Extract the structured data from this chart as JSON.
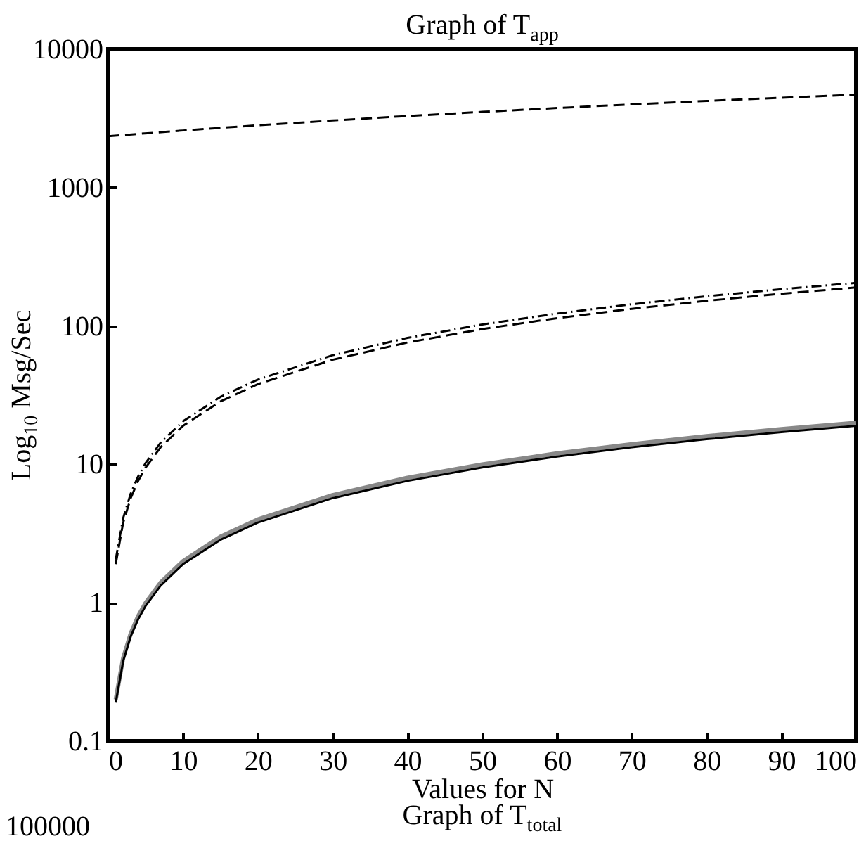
{
  "chart_data": {
    "type": "line",
    "title": "Graph of T$_{app}$",
    "xlabel": "Values for N",
    "ylabel": "Log$_{10}$ Msg/Sec",
    "x": [
      1,
      2,
      3,
      4,
      5,
      7,
      10,
      15,
      20,
      30,
      40,
      50,
      60,
      70,
      80,
      90,
      100
    ],
    "series": [
      {
        "color": "#888888",
        "line_style": "solid",
        "values": [
          0.2,
          0.4,
          0.6,
          0.8,
          1,
          1.4,
          2,
          3,
          4,
          6,
          8,
          10,
          12,
          14,
          16,
          18,
          20
        ]
      },
      {
        "color": "#000000",
        "line_style": "solid",
        "values": [
          0.19,
          0.38,
          0.57,
          0.76,
          0.95,
          1.33,
          1.9,
          2.85,
          3.8,
          5.7,
          7.6,
          9.5,
          11.4,
          13.3,
          15.2,
          17.1,
          19
        ]
      },
      {
        "color": "#000000",
        "line_style": "dashed",
        "values": [
          1.9,
          3.8,
          5.7,
          7.6,
          9.5,
          13.3,
          19,
          28.5,
          38,
          57,
          76,
          95,
          114,
          133,
          152,
          171,
          190
        ]
      },
      {
        "color": "#000000",
        "line_style": "dotted",
        "values": [
          2.05,
          4.1,
          6.15,
          8.2,
          10.25,
          14.35,
          20.5,
          30.75,
          41,
          61.5,
          82,
          102.5,
          123,
          143.5,
          164,
          184.5,
          205
        ]
      },
      {
        "color": "#000000",
        "line_style": "dashed",
        "x": [
          0,
          10,
          20,
          30,
          40,
          50,
          60,
          70,
          80,
          90,
          100
        ],
        "values": [
          2350,
          2585,
          2820,
          3055,
          3290,
          3525,
          3760,
          3995,
          4230,
          4465,
          4700
        ]
      }
    ],
    "log": "y",
    "grid": false,
    "xlim": [
      0,
      100
    ],
    "xticks": [
      0,
      10,
      20,
      30,
      40,
      50,
      60,
      70,
      80,
      90,
      100
    ],
    "ylim": [
      0.1,
      10000
    ],
    "yticks": [
      0.1,
      1,
      10,
      100,
      1000,
      10000
    ],
    "annotations": [
      "Graph of T$_{total}$",
      "100000"
    ]
  }
}
